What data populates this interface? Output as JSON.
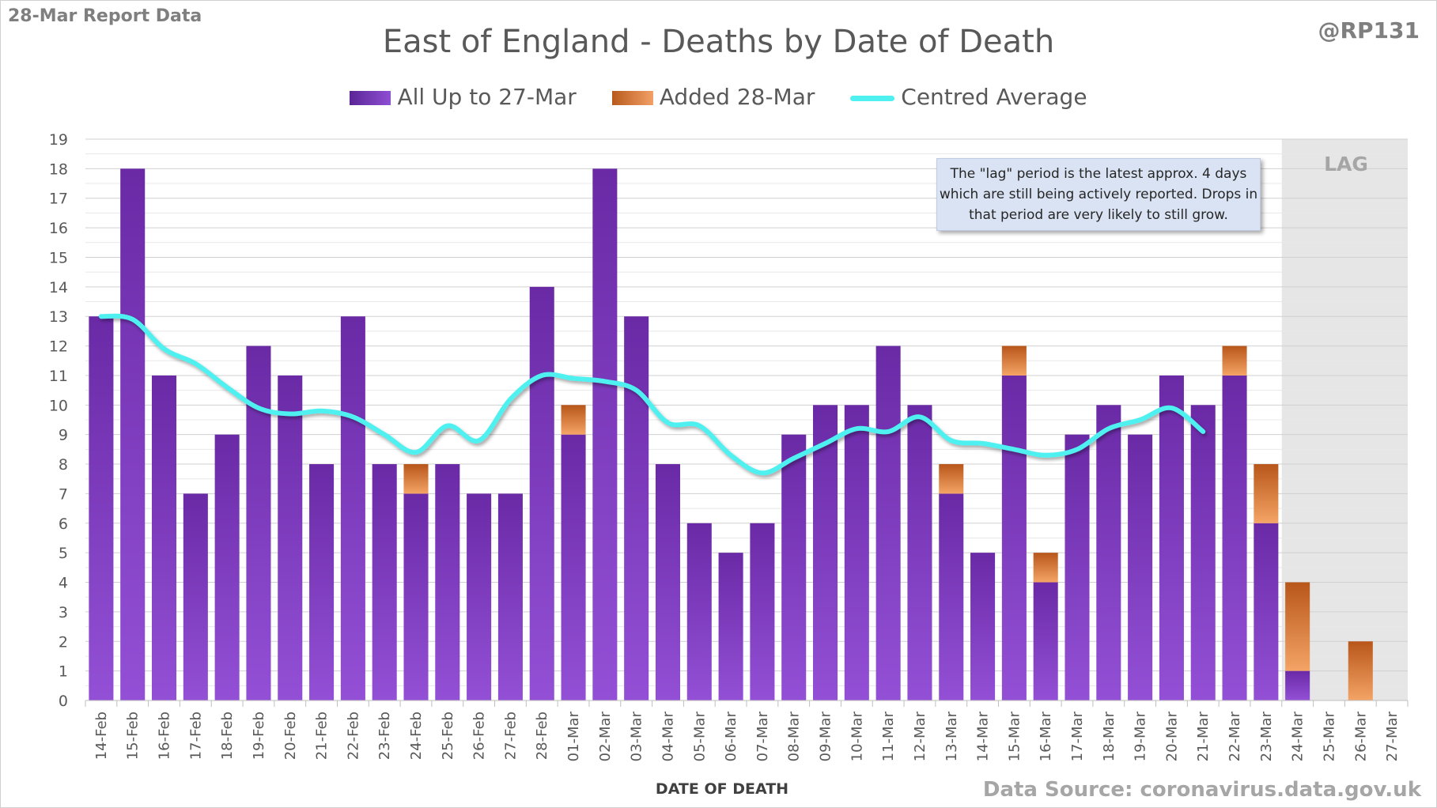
{
  "header": {
    "report_label": "28-Mar Report Data",
    "handle": "@RP131",
    "source": "Data Source: coronavirus.data.gov.uk"
  },
  "annotation": {
    "text": "The \"lag\" period is the latest approx. 4 days which are still being actively reported. Drops in that period are very likely to still grow."
  },
  "colors": {
    "all_up_to": "#7030a0",
    "added": "#e07028",
    "average": "#4ff0f0",
    "lag_shade": "#e6e6e6"
  },
  "chart_data": {
    "type": "bar",
    "title": "East of England - Deaths by Date of Death",
    "xlabel": "DATE OF DEATH",
    "ylabel": "",
    "ylim": [
      0,
      19
    ],
    "grid": true,
    "legend_position": "top",
    "lag_label": "LAG",
    "lag_categories": [
      "24-Mar",
      "25-Mar",
      "26-Mar",
      "27-Mar"
    ],
    "categories": [
      "14-Feb",
      "15-Feb",
      "16-Feb",
      "17-Feb",
      "18-Feb",
      "19-Feb",
      "20-Feb",
      "21-Feb",
      "22-Feb",
      "23-Feb",
      "24-Feb",
      "25-Feb",
      "26-Feb",
      "27-Feb",
      "28-Feb",
      "01-Mar",
      "02-Mar",
      "03-Mar",
      "04-Mar",
      "05-Mar",
      "06-Mar",
      "07-Mar",
      "08-Mar",
      "09-Mar",
      "10-Mar",
      "11-Mar",
      "12-Mar",
      "13-Mar",
      "14-Mar",
      "15-Mar",
      "16-Mar",
      "17-Mar",
      "18-Mar",
      "19-Mar",
      "20-Mar",
      "21-Mar",
      "22-Mar",
      "23-Mar",
      "24-Mar",
      "25-Mar",
      "26-Mar",
      "27-Mar"
    ],
    "series": [
      {
        "name": "All Up to 27-Mar",
        "kind": "stacked-bar",
        "values": [
          13,
          18,
          11,
          7,
          9,
          12,
          11,
          8,
          13,
          8,
          7,
          8,
          7,
          7,
          14,
          9,
          18,
          13,
          8,
          6,
          5,
          6,
          9,
          10,
          10,
          12,
          10,
          7,
          5,
          11,
          4,
          9,
          10,
          9,
          11,
          10,
          11,
          6,
          1,
          0,
          0,
          0
        ]
      },
      {
        "name": "Added 28-Mar",
        "kind": "stacked-bar",
        "values": [
          0,
          0,
          0,
          0,
          0,
          0,
          0,
          0,
          0,
          0,
          1,
          0,
          0,
          0,
          0,
          1,
          0,
          0,
          0,
          0,
          0,
          0,
          0,
          0,
          0,
          0,
          0,
          1,
          0,
          1,
          1,
          0,
          0,
          0,
          0,
          0,
          1,
          2,
          3,
          0,
          2,
          0
        ]
      },
      {
        "name": "Centred Average",
        "kind": "line",
        "values": [
          13.0,
          12.9,
          11.9,
          11.4,
          10.6,
          9.9,
          9.7,
          9.8,
          9.6,
          9.0,
          8.4,
          9.3,
          8.8,
          10.2,
          11.0,
          10.9,
          10.8,
          10.5,
          9.4,
          9.3,
          8.3,
          7.7,
          8.2,
          8.7,
          9.2,
          9.1,
          9.6,
          8.8,
          8.7,
          8.5,
          8.3,
          8.5,
          9.2,
          9.5,
          9.9,
          9.1,
          null,
          null,
          null,
          null,
          null,
          null
        ]
      }
    ]
  }
}
